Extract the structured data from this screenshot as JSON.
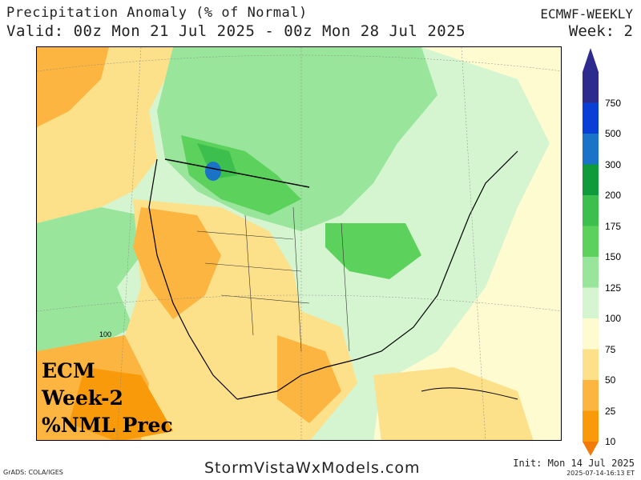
{
  "header": {
    "title": "Precipitation Anomaly (% of Normal)",
    "valid": "Valid: 00z Mon 21 Jul 2025 - 00z Mon 28 Jul 2025",
    "model": "ECMWF-WEEKLY",
    "week": "Week: 2"
  },
  "map": {
    "contour_label": "100",
    "overlay_lines": [
      "ECM",
      "Week-2",
      "%NML Prec"
    ]
  },
  "colorbar": {
    "levels": [
      {
        "label": "750",
        "color": "#2e2b8f"
      },
      {
        "label": "500",
        "color": "#0a3fd6"
      },
      {
        "label": "300",
        "color": "#1a73c7"
      },
      {
        "label": "200",
        "color": "#0f9a3c"
      },
      {
        "label": "175",
        "color": "#3cbf4c"
      },
      {
        "label": "150",
        "color": "#5cd15c"
      },
      {
        "label": "125",
        "color": "#99e59b"
      },
      {
        "label": "100",
        "color": "#d5f5d0"
      },
      {
        "label": "75",
        "color": "#fffbd1"
      },
      {
        "label": "50",
        "color": "#fde08a"
      },
      {
        "label": "25",
        "color": "#fbb540"
      },
      {
        "label": "10",
        "color": "#f99a0a"
      }
    ],
    "below_color": "#f27a0a"
  },
  "footer": {
    "credit": "GrADS: COLA/IGES",
    "site": "StormVistaWxModels.com",
    "init": "Init: Mon 14 Jul 2025",
    "timestamp": "2025-07-14-16:13 ET"
  }
}
